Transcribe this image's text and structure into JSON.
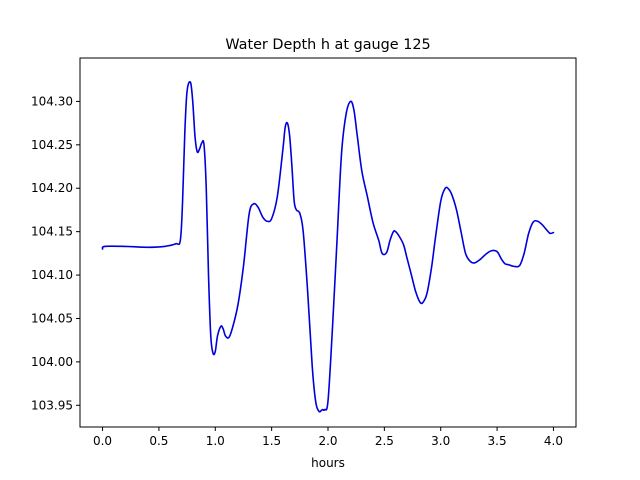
{
  "chart_data": {
    "type": "line",
    "title": "Water Depth h at gauge 125",
    "xlabel": "hours",
    "ylabel": "",
    "xlim": [
      -0.2,
      4.2
    ],
    "ylim": [
      103.925,
      104.35
    ],
    "xticks": [
      0.0,
      0.5,
      1.0,
      1.5,
      2.0,
      2.5,
      3.0,
      3.5,
      4.0
    ],
    "xtick_labels": [
      "0.0",
      "0.5",
      "1.0",
      "1.5",
      "2.0",
      "2.5",
      "3.0",
      "3.5",
      "4.0"
    ],
    "yticks": [
      103.95,
      104.0,
      104.05,
      104.1,
      104.15,
      104.2,
      104.25,
      104.3
    ],
    "ytick_labels": [
      "103.95",
      "104.00",
      "104.05",
      "104.10",
      "104.15",
      "104.20",
      "104.25",
      "104.30"
    ],
    "grid": false,
    "series": [
      {
        "color": "#0000dd",
        "x": [
          0.0,
          0.02,
          0.2,
          0.4,
          0.55,
          0.65,
          0.69,
          0.71,
          0.73,
          0.75,
          0.78,
          0.8,
          0.82,
          0.84,
          0.86,
          0.88,
          0.9,
          0.92,
          0.94,
          0.96,
          0.98,
          1.0,
          1.02,
          1.05,
          1.07,
          1.09,
          1.12,
          1.15,
          1.2,
          1.25,
          1.3,
          1.34,
          1.38,
          1.42,
          1.46,
          1.5,
          1.55,
          1.6,
          1.62,
          1.64,
          1.66,
          1.68,
          1.7,
          1.72,
          1.75,
          1.78,
          1.82,
          1.86,
          1.89,
          1.92,
          1.95,
          1.97,
          2.0,
          2.04,
          2.08,
          2.12,
          2.16,
          2.2,
          2.23,
          2.26,
          2.3,
          2.35,
          2.4,
          2.45,
          2.48,
          2.52,
          2.55,
          2.58,
          2.6,
          2.63,
          2.67,
          2.7,
          2.74,
          2.78,
          2.82,
          2.85,
          2.88,
          2.92,
          2.95,
          3.0,
          3.04,
          3.07,
          3.1,
          3.14,
          3.18,
          3.22,
          3.26,
          3.3,
          3.35,
          3.4,
          3.45,
          3.5,
          3.54,
          3.57,
          3.6,
          3.65,
          3.7,
          3.74,
          3.78,
          3.82,
          3.86,
          3.9,
          3.94,
          3.97,
          4.0
        ],
        "y": [
          104.13,
          104.133,
          104.133,
          104.132,
          104.133,
          104.136,
          104.14,
          104.185,
          104.265,
          104.312,
          104.322,
          104.3,
          104.26,
          104.242,
          104.245,
          104.252,
          104.25,
          104.2,
          104.1,
          104.03,
          104.01,
          104.012,
          104.03,
          104.041,
          104.038,
          104.03,
          104.028,
          104.038,
          104.065,
          104.11,
          104.17,
          104.182,
          104.178,
          104.167,
          104.162,
          104.165,
          104.19,
          104.245,
          104.27,
          104.275,
          104.26,
          104.225,
          104.185,
          104.175,
          104.171,
          104.15,
          104.08,
          103.995,
          103.955,
          103.943,
          103.945,
          103.945,
          103.955,
          104.04,
          104.14,
          104.24,
          104.285,
          104.3,
          104.29,
          104.26,
          104.22,
          104.19,
          104.16,
          104.14,
          104.125,
          104.126,
          104.14,
          104.15,
          104.15,
          104.145,
          104.135,
          104.12,
          104.1,
          104.08,
          104.068,
          104.07,
          104.08,
          104.11,
          104.14,
          104.185,
          104.2,
          104.199,
          104.192,
          104.175,
          104.15,
          104.125,
          104.116,
          104.114,
          104.118,
          104.124,
          104.128,
          104.127,
          104.118,
          104.113,
          104.112,
          104.11,
          104.111,
          104.125,
          104.148,
          104.161,
          104.162,
          104.158,
          104.152,
          104.148,
          104.149
        ]
      }
    ]
  }
}
